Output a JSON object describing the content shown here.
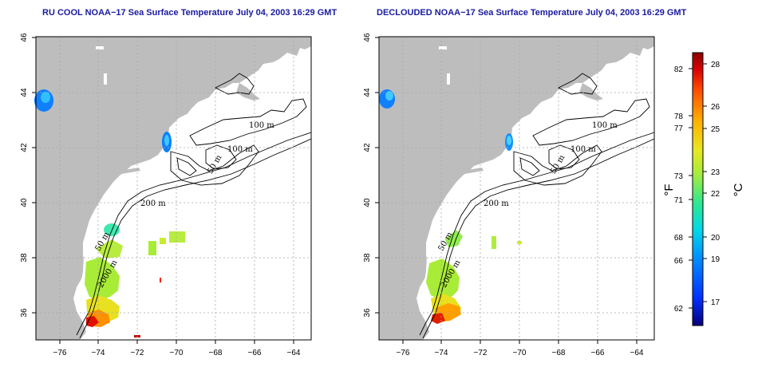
{
  "panels": [
    {
      "id": "left",
      "title": "RU COOL NOAA−17 Sea Surface Temperature July 04, 2003 16:29 GMT",
      "contour_labels": [
        "100 m",
        "100 m",
        "50 m",
        "200 m",
        "50 m",
        "2000 m"
      ]
    },
    {
      "id": "right",
      "title": "DECLOUDED NOAA−17 Sea Surface Temperature July 04, 2003 16:29 GMT",
      "contour_labels": [
        "100 m",
        "100 m",
        "50 m",
        "200 m",
        "50 m",
        "2000 m"
      ]
    }
  ],
  "axes": {
    "x_ticks": [
      "−76",
      "−74",
      "−72",
      "−70",
      "−68",
      "−66",
      "−64"
    ],
    "y_ticks": [
      "36",
      "38",
      "40",
      "42",
      "44",
      "46"
    ],
    "lon_range": [
      -77,
      -63
    ],
    "lat_range": [
      35,
      46
    ]
  },
  "colorbar": {
    "f_ticks": [
      "82",
      "78",
      "77",
      "73",
      "71",
      "68",
      "66",
      "62"
    ],
    "c_ticks": [
      "28",
      "26",
      "25",
      "23",
      "22",
      "20",
      "19",
      "17"
    ],
    "f_unit": "°F",
    "c_unit": "°C",
    "colors": [
      "#08007a",
      "#0030ff",
      "#0090ff",
      "#00d8e8",
      "#30e890",
      "#a0ec40",
      "#e8e820",
      "#ffb000",
      "#ff5000",
      "#d80000",
      "#8a0000"
    ]
  },
  "colors": {
    "land": "#bdbdbd",
    "sea": "#ffffff",
    "grid": "#a8a8a8",
    "title": "#1a1aa0"
  }
}
